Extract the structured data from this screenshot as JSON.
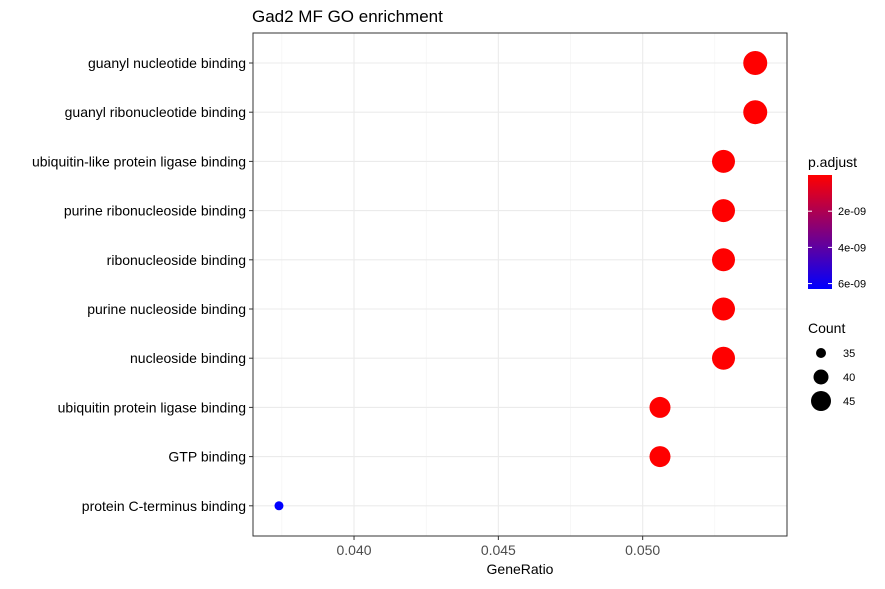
{
  "chart_data": {
    "type": "scatter",
    "title": "Gad2 MF GO enrichment",
    "xlabel": "GeneRatio",
    "ylabel": "",
    "xlim": [
      0.0365,
      0.055
    ],
    "xticks": [
      0.04,
      0.045,
      0.05
    ],
    "xtick_labels": [
      "0.040",
      "0.045",
      "0.050"
    ],
    "grid": true,
    "categories": [
      "guanyl nucleotide binding",
      "guanyl ribonucleotide binding",
      "ubiquitin-like protein ligase binding",
      "purine ribonucleoside binding",
      "ribonucleoside binding",
      "purine nucleoside binding",
      "nucleoside binding",
      "ubiquitin protein ligase binding",
      "GTP binding",
      "protein C-terminus binding"
    ],
    "gene_ratio": [
      0.0539,
      0.0539,
      0.0528,
      0.0528,
      0.0528,
      0.0528,
      0.0528,
      0.0506,
      0.0506,
      0.0374
    ],
    "count": [
      49,
      49,
      48,
      48,
      48,
      48,
      48,
      46,
      46,
      34
    ],
    "p_adjust": [
      0.0,
      0.0,
      0.0,
      0.0,
      0.0,
      0.0,
      0.0,
      0.0,
      0.0,
      6.3e-09
    ],
    "color_legend": {
      "title": "p.adjust",
      "low_color": "#ff0000",
      "high_color": "#0000ff",
      "range": [
        0.0,
        6.3e-09
      ],
      "ticks": [
        2e-09,
        4e-09,
        6e-09
      ],
      "tick_labels": [
        "2e-09",
        "4e-09",
        "6e-09"
      ]
    },
    "size_legend": {
      "title": "Count",
      "values": [
        35,
        40,
        45
      ],
      "labels": [
        "35",
        "40",
        "45"
      ]
    },
    "legend_position": "right"
  }
}
